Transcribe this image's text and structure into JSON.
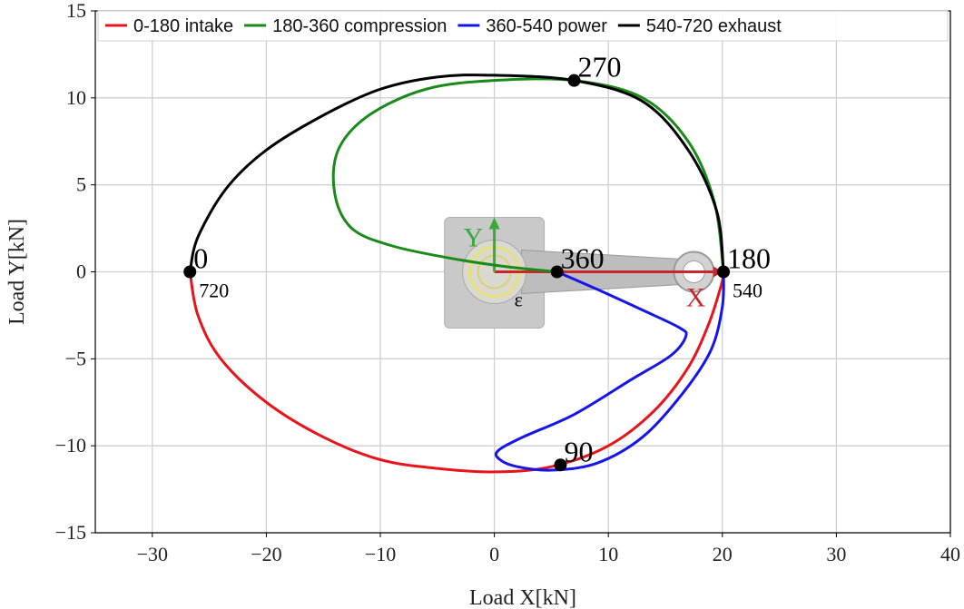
{
  "chart_data": {
    "type": "line",
    "xlabel": "Load X[kN]",
    "ylabel": "Load Y[kN]",
    "xlim": [
      -35,
      40
    ],
    "ylim": [
      -15,
      15
    ],
    "xticks": [
      -30,
      -20,
      -10,
      0,
      10,
      20,
      30,
      40
    ],
    "yticks": [
      -15,
      -10,
      -5,
      0,
      5,
      10,
      15
    ],
    "xtick_labels": [
      "−30",
      "−20",
      "−10",
      "0",
      "10",
      "20",
      "30",
      "40"
    ],
    "ytick_labels": [
      "−15",
      "−10",
      "−5",
      "0",
      "5",
      "10",
      "15"
    ],
    "grid": true,
    "legend_position": "top",
    "series": [
      {
        "name": "0-180 intake",
        "color": "#e8141c",
        "x": [
          -26.7,
          -26.0,
          -24.0,
          -20.0,
          -15.0,
          -10.0,
          -5.0,
          0.0,
          5.0,
          10.0,
          14.0,
          17.0,
          18.8,
          19.8,
          20.1,
          20.1
        ],
        "y": [
          0.0,
          -2.5,
          -5.0,
          -7.5,
          -9.5,
          -10.8,
          -11.3,
          -11.5,
          -11.2,
          -10.0,
          -8.0,
          -5.5,
          -3.0,
          -1.0,
          -0.2,
          0.0
        ]
      },
      {
        "name": "180-360 compression",
        "color": "#1a8a1a",
        "x": [
          20.1,
          19.3,
          17.0,
          13.0,
          7.0,
          0.0,
          -6.0,
          -11.0,
          -13.7,
          -14.0,
          -12.5,
          -9.0,
          -4.0,
          1.0,
          5.5
        ],
        "y": [
          0.0,
          4.0,
          7.5,
          10.0,
          11.0,
          11.0,
          10.5,
          9.0,
          7.0,
          4.5,
          2.5,
          1.5,
          0.8,
          0.3,
          0.0
        ]
      },
      {
        "name": "360-540 power",
        "color": "#1515e8",
        "x": [
          5.5,
          9.0,
          13.0,
          16.2,
          16.8,
          15.5,
          12.0,
          7.0,
          2.5,
          0.3,
          0.5,
          2.0,
          5.0,
          9.0,
          13.0,
          16.5,
          19.0,
          20.0,
          20.1
        ],
        "y": [
          0.0,
          -1.0,
          -2.2,
          -3.2,
          -3.7,
          -4.8,
          -6.2,
          -8.2,
          -9.5,
          -10.3,
          -10.8,
          -11.2,
          -11.4,
          -11.0,
          -9.5,
          -7.0,
          -4.5,
          -2.0,
          0.0
        ]
      },
      {
        "name": "540-720 exhaust",
        "color": "#000000",
        "x": [
          20.1,
          19.5,
          17.0,
          13.0,
          7.0,
          0.0,
          -5.0,
          -10.0,
          -15.0,
          -20.0,
          -23.5,
          -26.0,
          -26.7
        ],
        "y": [
          0.0,
          3.5,
          7.0,
          9.8,
          11.0,
          11.3,
          11.2,
          10.5,
          9.0,
          7.0,
          4.8,
          2.0,
          0.0
        ]
      }
    ],
    "markers": [
      {
        "x": -26.7,
        "y": 0,
        "label": "0",
        "sub_label": "720"
      },
      {
        "x": 5.8,
        "y": -11.1,
        "label": "90"
      },
      {
        "x": 20.1,
        "y": 0,
        "label": "180",
        "sub_label": "540"
      },
      {
        "x": 7.0,
        "y": 11.0,
        "label": "270"
      },
      {
        "x": 5.5,
        "y": 0,
        "label": "360"
      }
    ],
    "inset": {
      "x_axis_letter": "X",
      "y_axis_letter": "Y",
      "angle_symbol": "ε",
      "x_axis_color": "#c8262c",
      "y_axis_color": "#3aa83a",
      "pin_color": "#e8e07a"
    }
  }
}
